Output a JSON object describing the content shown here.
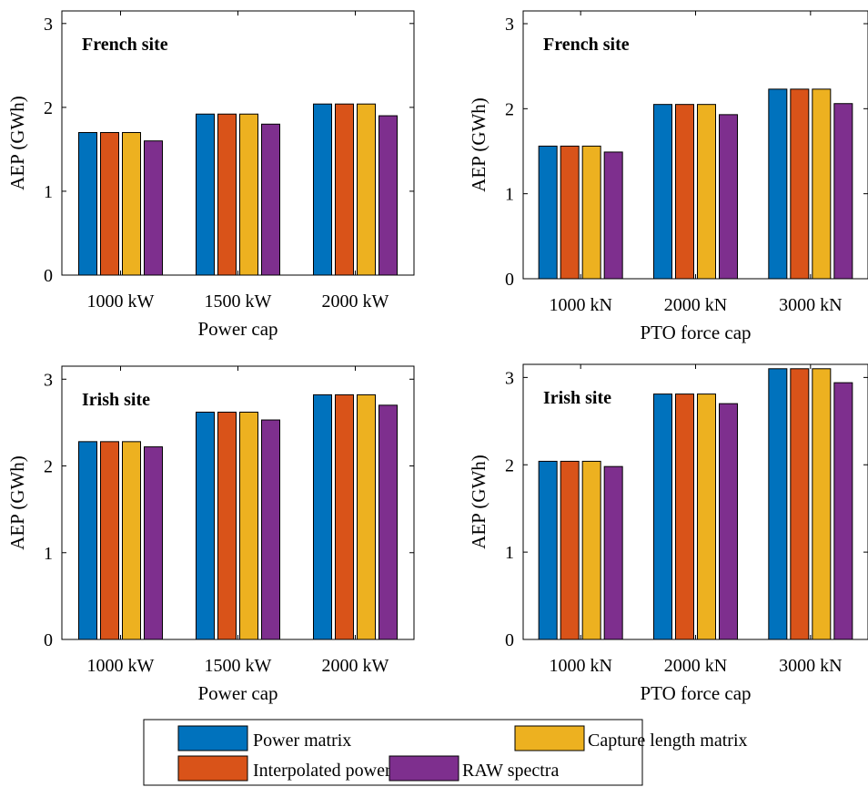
{
  "legend": {
    "entries": [
      {
        "name": "Power matrix",
        "color": "#0072BD"
      },
      {
        "name": "Capture length matrix",
        "color": "#EDB120"
      },
      {
        "name": "Interpolated power matrix",
        "color": "#D95319"
      },
      {
        "name": "RAW spectra",
        "color": "#7E2F8E"
      }
    ]
  },
  "chart_data": [
    {
      "type": "bar",
      "annotation": "French site",
      "xlabel": "Power cap",
      "ylabel": "AEP (GWh)",
      "categories": [
        "1000 kW",
        "1500 kW",
        "2000 kW"
      ],
      "ylim": [
        0,
        3.15
      ],
      "yticks": [
        0,
        1,
        2,
        3
      ],
      "series": [
        {
          "name": "Power matrix",
          "color": "#0072BD",
          "values": [
            1.7,
            1.92,
            2.04
          ]
        },
        {
          "name": "Interpolated power matrix",
          "color": "#D95319",
          "values": [
            1.7,
            1.92,
            2.04
          ]
        },
        {
          "name": "Capture length matrix",
          "color": "#EDB120",
          "values": [
            1.7,
            1.92,
            2.04
          ]
        },
        {
          "name": "RAW spectra",
          "color": "#7E2F8E",
          "values": [
            1.6,
            1.8,
            1.9
          ]
        }
      ]
    },
    {
      "type": "bar",
      "annotation": "French site",
      "xlabel": "PTO force cap",
      "ylabel": "AEP (GWh)",
      "categories": [
        "1000 kN",
        "2000 kN",
        "3000 kN"
      ],
      "ylim": [
        0,
        3.15
      ],
      "yticks": [
        0,
        1,
        2,
        3
      ],
      "series": [
        {
          "name": "Power matrix",
          "color": "#0072BD",
          "values": [
            1.56,
            2.05,
            2.23
          ]
        },
        {
          "name": "Interpolated power matrix",
          "color": "#D95319",
          "values": [
            1.56,
            2.05,
            2.23
          ]
        },
        {
          "name": "Capture length matrix",
          "color": "#EDB120",
          "values": [
            1.56,
            2.05,
            2.23
          ]
        },
        {
          "name": "RAW spectra",
          "color": "#7E2F8E",
          "values": [
            1.49,
            1.93,
            2.06
          ]
        }
      ]
    },
    {
      "type": "bar",
      "annotation": "Irish site",
      "xlabel": "Power cap",
      "ylabel": "AEP (GWh)",
      "categories": [
        "1000 kW",
        "1500 kW",
        "2000 kW"
      ],
      "ylim": [
        0,
        3.15
      ],
      "yticks": [
        0,
        1,
        2,
        3
      ],
      "series": [
        {
          "name": "Power matrix",
          "color": "#0072BD",
          "values": [
            2.28,
            2.62,
            2.82
          ]
        },
        {
          "name": "Interpolated power matrix",
          "color": "#D95319",
          "values": [
            2.28,
            2.62,
            2.82
          ]
        },
        {
          "name": "Capture length matrix",
          "color": "#EDB120",
          "values": [
            2.28,
            2.62,
            2.82
          ]
        },
        {
          "name": "RAW spectra",
          "color": "#7E2F8E",
          "values": [
            2.22,
            2.53,
            2.7
          ]
        }
      ]
    },
    {
      "type": "bar",
      "annotation": "Irish site",
      "xlabel": "PTO force cap",
      "ylabel": "AEP (GWh)",
      "categories": [
        "1000 kN",
        "2000 kN",
        "3000 kN"
      ],
      "ylim": [
        0,
        3.15
      ],
      "yticks": [
        0,
        1,
        2,
        3
      ],
      "series": [
        {
          "name": "Power matrix",
          "color": "#0072BD",
          "values": [
            2.04,
            2.81,
            3.1
          ]
        },
        {
          "name": "Interpolated power matrix",
          "color": "#D95319",
          "values": [
            2.04,
            2.81,
            3.1
          ]
        },
        {
          "name": "Capture length matrix",
          "color": "#EDB120",
          "values": [
            2.04,
            2.81,
            3.1
          ]
        },
        {
          "name": "RAW spectra",
          "color": "#7E2F8E",
          "values": [
            1.98,
            2.7,
            2.94
          ]
        }
      ]
    }
  ]
}
